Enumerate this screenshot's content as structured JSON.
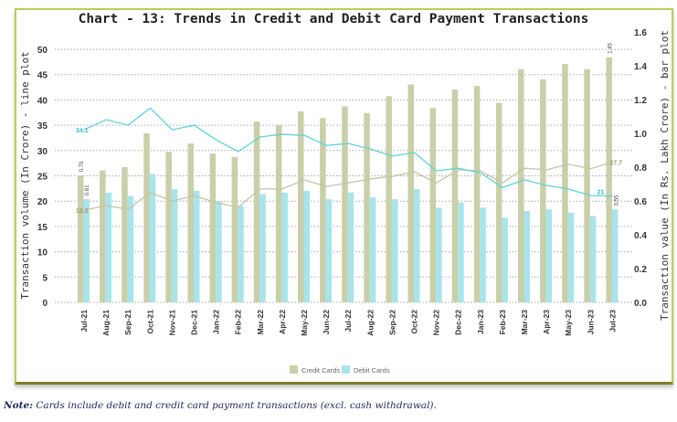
{
  "chart_data": {
    "type": "bar+line",
    "title": "Chart - 13: Trends in Credit and Debit Card Payment Transactions",
    "ylabel_left": "Transaction volume (In Crore) - line plot",
    "ylabel_right": "Transaction value (In Rs. Lakh Crore) - bar plot",
    "ylim_left": [
      0,
      50
    ],
    "yticks_left": [
      0,
      5,
      10,
      15,
      20,
      25,
      30,
      35,
      40,
      45,
      50
    ],
    "ylim_right": [
      0,
      1.6
    ],
    "yticks_right": [
      "0.0",
      "0.2",
      "0.4",
      "0.6",
      "0.8",
      "1.0",
      "1.2",
      "1.4",
      "1.6"
    ],
    "grid": true,
    "legend_position": "bottom",
    "categories": [
      "Jul-21",
      "Aug-21",
      "Sep-21",
      "Oct-21",
      "Nov-21",
      "Dec-21",
      "Jan-22",
      "Feb-22",
      "Mar-22",
      "Apr-22",
      "May-22",
      "Jun-22",
      "Jul-22",
      "Aug-22",
      "Sep-22",
      "Oct-22",
      "Nov-22",
      "Dec-22",
      "Jan-23",
      "Feb-23",
      "Mar-23",
      "Apr-23",
      "May-23",
      "Jun-23",
      "Jul-23"
    ],
    "bar_series": [
      {
        "name": "Credit Cards",
        "color": "#c9cfa9",
        "axis": "right",
        "values": [
          0.75,
          0.78,
          0.8,
          1.0,
          0.89,
          0.94,
          0.88,
          0.86,
          1.07,
          1.05,
          1.13,
          1.09,
          1.16,
          1.12,
          1.22,
          1.29,
          1.15,
          1.26,
          1.28,
          1.18,
          1.38,
          1.32,
          1.41,
          1.38,
          1.45
        ]
      },
      {
        "name": "Debit Cards",
        "color": "#a8e4ec",
        "axis": "right",
        "values": [
          0.61,
          0.65,
          0.63,
          0.76,
          0.67,
          0.66,
          0.6,
          0.57,
          0.64,
          0.65,
          0.66,
          0.61,
          0.65,
          0.62,
          0.61,
          0.67,
          0.56,
          0.59,
          0.56,
          0.5,
          0.54,
          0.55,
          0.53,
          0.51,
          0.55
        ]
      }
    ],
    "line_series": [
      {
        "label_of": "Credit Cards",
        "color": "#c2c6a4",
        "axis": "left",
        "values": [
          18.2,
          19.1,
          18.4,
          21.7,
          20.0,
          21.1,
          19.7,
          18.8,
          22.4,
          22.4,
          24.2,
          22.9,
          23.6,
          24.4,
          24.9,
          25.8,
          23.6,
          26.2,
          26.0,
          23.6,
          26.5,
          26.2,
          27.3,
          26.4,
          27.7
        ]
      },
      {
        "label_of": "Debit Cards",
        "color": "#5fd3d8",
        "axis": "left",
        "values": [
          34.1,
          36.1,
          35.0,
          38.4,
          34.1,
          35.0,
          32.1,
          29.8,
          32.7,
          33.2,
          33.0,
          31.0,
          31.4,
          30.3,
          28.9,
          29.6,
          26.0,
          26.5,
          25.6,
          22.7,
          24.2,
          23.1,
          22.4,
          21.1,
          21.0
        ]
      }
    ],
    "data_labels": {
      "credit_bar_first": "0.75",
      "credit_bar_last": "1.45",
      "debit_bar_first": "0.61",
      "debit_bar_last": "0.55",
      "credit_line_first": "18.2",
      "credit_line_last": "27.7",
      "debit_line_first": "34.1",
      "debit_line_last": "21"
    }
  },
  "note": {
    "prefix": "Note:",
    "text": " Cards include debit and credit card payment transactions (excl. cash withdrawal)."
  }
}
